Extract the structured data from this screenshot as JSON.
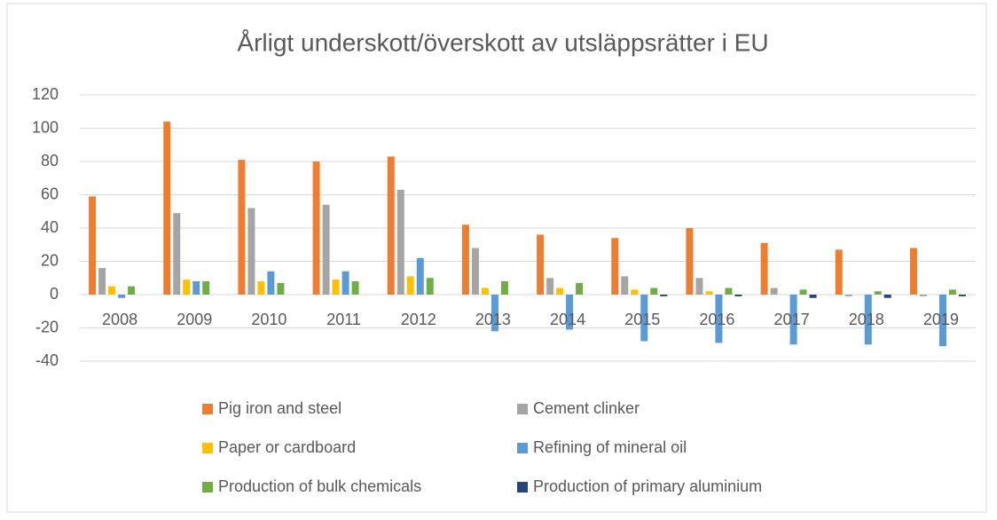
{
  "chart_data": {
    "type": "bar",
    "title": "Årligt underskott/överskott av utsläppsrätter i EU",
    "categories": [
      "2008",
      "2009",
      "2010",
      "2011",
      "2012",
      "2013",
      "2014",
      "2015",
      "2016",
      "2017",
      "2018",
      "2019"
    ],
    "series": [
      {
        "name": "Pig iron and steel",
        "color": "#ed7d31",
        "values": [
          59,
          104,
          81,
          80,
          83,
          42,
          36,
          34,
          40,
          31,
          27,
          28
        ]
      },
      {
        "name": "Cement clinker",
        "color": "#a5a5a5",
        "values": [
          16,
          49,
          52,
          54,
          63,
          28,
          10,
          11,
          10,
          4,
          -1,
          -1
        ]
      },
      {
        "name": "Paper or cardboard",
        "color": "#ffc000",
        "values": [
          5,
          9,
          8,
          9,
          11,
          4,
          4,
          3,
          2,
          0,
          0,
          0
        ]
      },
      {
        "name": "Refining of mineral oil",
        "color": "#5b9bd5",
        "values": [
          -2,
          8,
          14,
          14,
          22,
          -22,
          -21,
          -28,
          -29,
          -30,
          -30,
          -31
        ]
      },
      {
        "name": "Production of bulk chemicals",
        "color": "#70ad47",
        "values": [
          5,
          8,
          7,
          8,
          10,
          8,
          7,
          4,
          4,
          3,
          2,
          3
        ]
      },
      {
        "name": "Production of primary aluminium",
        "color": "#264478",
        "values": [
          0,
          0,
          0,
          0,
          0,
          0,
          0,
          -1,
          -1,
          -2,
          -2,
          -1
        ]
      }
    ],
    "ylim": [
      -40,
      120
    ],
    "yticks": [
      -40,
      -20,
      0,
      20,
      40,
      60,
      80,
      100,
      120
    ],
    "grid": true,
    "legend": "bottom"
  }
}
